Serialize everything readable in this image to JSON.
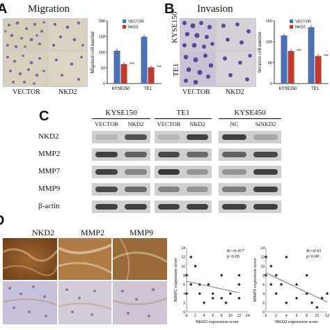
{
  "panelA": {
    "label": "A",
    "title": "Migration",
    "col_labels": [
      "VECTOR",
      "NKD2"
    ],
    "chart_data": {
      "type": "bar",
      "categories": [
        "KYSE150",
        "TE1"
      ],
      "series": [
        {
          "name": "VECTOR",
          "values": [
            105,
            150
          ],
          "color": "#4a6fb5"
        },
        {
          "name": "NKD2",
          "values": [
            62,
            52
          ],
          "color": "#c0392b"
        }
      ],
      "ylabel": "Migrated cell number",
      "ylim": [
        0,
        200
      ],
      "yticks": [
        0,
        50,
        100,
        150,
        200
      ],
      "annotations": [
        "***",
        "***"
      ]
    }
  },
  "panelB": {
    "label": "B",
    "title": "Invasion",
    "row_labels": [
      "KYSE150",
      "TE1"
    ],
    "col_labels": [
      "VECTOR",
      "NKD2"
    ],
    "chart_data": {
      "type": "bar",
      "categories": [
        "KYSE150",
        "TE1"
      ],
      "series": [
        {
          "name": "VECTOR",
          "values": [
            115,
            135
          ],
          "color": "#4a6fb5"
        },
        {
          "name": "NKD2",
          "values": [
            78,
            66
          ],
          "color": "#c0392b"
        }
      ],
      "ylabel": "Invasive cell number",
      "ylim": [
        0,
        150
      ],
      "yticks": [
        0,
        50,
        100,
        150
      ],
      "annotations": [
        "***",
        "***"
      ]
    }
  },
  "panelC": {
    "label": "C",
    "groups": [
      {
        "title": "KYSE150",
        "lanes": [
          "VECTOR",
          "NKD2"
        ]
      },
      {
        "title": "TE1",
        "lanes": [
          "VECTOR",
          "NKD2"
        ]
      },
      {
        "title": "KYSE450",
        "lanes": [
          "NC",
          "SiNKD2"
        ]
      }
    ],
    "rows": [
      "NKD2",
      "MMP2",
      "MMP7",
      "MMP9",
      "β-actin"
    ]
  },
  "panelD": {
    "label": "D",
    "ihc_labels": [
      "NKD2",
      "MMP2",
      "MMP9"
    ],
    "scatter1": {
      "chart_data": {
        "type": "scatter",
        "xlabel": "NKD2 expression score",
        "ylabel": "MMP2 expression score",
        "xlim": [
          0,
          14
        ],
        "ylim": [
          0,
          14
        ],
        "xticks": [
          0,
          2,
          4,
          6,
          8,
          10,
          12,
          14
        ],
        "yticks": [
          0,
          2,
          4,
          6,
          8,
          10,
          12,
          14
        ],
        "x": [
          0,
          0,
          1,
          1,
          2,
          3,
          3,
          4,
          5,
          6,
          6,
          8,
          8,
          9,
          10,
          12,
          12,
          12
        ],
        "y": [
          8,
          4,
          12,
          6,
          10,
          4,
          6,
          2,
          6,
          3,
          4,
          8,
          3,
          2,
          4,
          8,
          6,
          3
        ],
        "annotation_r": "R=-0.417",
        "annotation_p": "p<0.05"
      }
    },
    "scatter2": {
      "chart_data": {
        "type": "scatter",
        "xlabel": "NKD2 expression score",
        "ylabel": "MMP9 expression score",
        "xlim": [
          0,
          12
        ],
        "ylim": [
          0,
          14
        ],
        "xticks": [
          0,
          2,
          4,
          6,
          8,
          10,
          12
        ],
        "yticks": [
          0,
          2,
          4,
          6,
          8,
          10,
          12,
          14
        ],
        "x": [
          0,
          0,
          1,
          1,
          2,
          2,
          3,
          4,
          4,
          6,
          6,
          8,
          8,
          9,
          10,
          11,
          12
        ],
        "y": [
          8,
          12,
          6,
          10,
          4,
          8,
          6,
          12,
          2,
          6,
          3,
          8,
          4,
          2,
          1,
          3,
          4
        ],
        "annotation_r": "R=-0.61",
        "annotation_p": "p<0.00"
      }
    }
  }
}
